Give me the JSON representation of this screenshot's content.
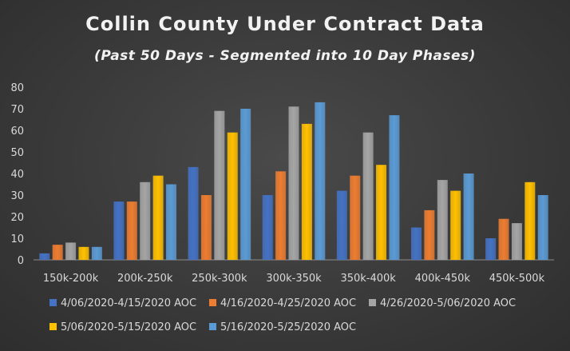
{
  "chart_data": {
    "type": "bar",
    "title": "Collin County Under Contract Data",
    "subtitle": "(Past 50 Days - Segmented into 10 Day Phases)",
    "categories": [
      "150k-200k",
      "200k-250k",
      "250k-300k",
      "300k-350k",
      "350k-400k",
      "400k-450k",
      "450k-500k"
    ],
    "series": [
      {
        "name": "4/06/2020-4/15/2020 AOC",
        "color": "#4472c4",
        "values": [
          3,
          27,
          43,
          30,
          32,
          15,
          10
        ]
      },
      {
        "name": "4/16/2020-4/25/2020 AOC",
        "color": "#ed7d31",
        "values": [
          7,
          27,
          30,
          41,
          39,
          23,
          19
        ]
      },
      {
        "name": "4/26/2020-5/06/2020 AOC",
        "color": "#a5a5a5",
        "values": [
          8,
          36,
          69,
          71,
          59,
          37,
          17
        ]
      },
      {
        "name": "5/06/2020-5/15/2020 AOC",
        "color": "#ffc000",
        "values": [
          6,
          39,
          59,
          63,
          44,
          32,
          36
        ]
      },
      {
        "name": "5/16/2020-5/25/2020 AOC",
        "color": "#5b9bd5",
        "values": [
          6,
          35,
          70,
          73,
          67,
          40,
          30
        ]
      }
    ],
    "yticks": [
      "0",
      "10",
      "20",
      "30",
      "40",
      "50",
      "60",
      "70",
      "80"
    ],
    "ylim": [
      0,
      80
    ],
    "grid": false,
    "legend_position": "bottom"
  }
}
